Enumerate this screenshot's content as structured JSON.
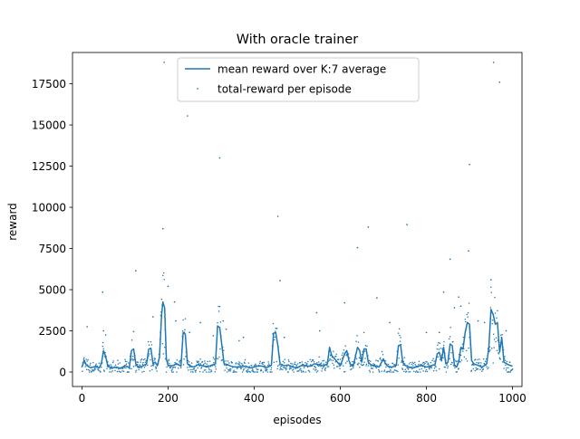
{
  "chart_data": {
    "type": "line",
    "title": "With oracle trainer",
    "xlabel": "episodes",
    "ylabel": "reward",
    "xlim": [
      -22,
      1022
    ],
    "ylim": [
      -880,
      19400
    ],
    "xticks": [
      0,
      200,
      400,
      600,
      800,
      1000
    ],
    "yticks": [
      0,
      2500,
      5000,
      7500,
      10000,
      12500,
      15000,
      17500
    ],
    "grid": false,
    "legend_position": "upper center",
    "series": [
      {
        "name": "mean reward over K:7 average",
        "style": "line",
        "color": "#1f77b4",
        "points": [
          [
            0,
            300
          ],
          [
            5,
            720
          ],
          [
            10,
            420
          ],
          [
            20,
            260
          ],
          [
            30,
            330
          ],
          [
            40,
            250
          ],
          [
            45,
            500
          ],
          [
            50,
            1300
          ],
          [
            55,
            950
          ],
          [
            60,
            350
          ],
          [
            70,
            250
          ],
          [
            80,
            300
          ],
          [
            90,
            220
          ],
          [
            100,
            400
          ],
          [
            110,
            260
          ],
          [
            115,
            1300
          ],
          [
            120,
            1400
          ],
          [
            125,
            500
          ],
          [
            130,
            280
          ],
          [
            140,
            350
          ],
          [
            150,
            500
          ],
          [
            155,
            1380
          ],
          [
            160,
            1450
          ],
          [
            165,
            500
          ],
          [
            170,
            600
          ],
          [
            175,
            380
          ],
          [
            180,
            900
          ],
          [
            185,
            3500
          ],
          [
            188,
            4250
          ],
          [
            192,
            3900
          ],
          [
            196,
            800
          ],
          [
            200,
            400
          ],
          [
            210,
            380
          ],
          [
            220,
            500
          ],
          [
            230,
            350
          ],
          [
            235,
            2400
          ],
          [
            240,
            2300
          ],
          [
            245,
            500
          ],
          [
            250,
            380
          ],
          [
            260,
            300
          ],
          [
            270,
            450
          ],
          [
            280,
            380
          ],
          [
            290,
            300
          ],
          [
            300,
            400
          ],
          [
            310,
            500
          ],
          [
            315,
            2800
          ],
          [
            320,
            2700
          ],
          [
            325,
            1600
          ],
          [
            330,
            500
          ],
          [
            340,
            420
          ],
          [
            350,
            320
          ],
          [
            360,
            300
          ],
          [
            370,
            300
          ],
          [
            380,
            360
          ],
          [
            390,
            250
          ],
          [
            400,
            300
          ],
          [
            410,
            380
          ],
          [
            420,
            350
          ],
          [
            430,
            280
          ],
          [
            440,
            400
          ],
          [
            445,
            2350
          ],
          [
            450,
            2400
          ],
          [
            455,
            1600
          ],
          [
            460,
            500
          ],
          [
            470,
            380
          ],
          [
            480,
            420
          ],
          [
            490,
            300
          ],
          [
            500,
            250
          ],
          [
            510,
            400
          ],
          [
            520,
            380
          ],
          [
            530,
            350
          ],
          [
            540,
            500
          ],
          [
            550,
            450
          ],
          [
            560,
            380
          ],
          [
            570,
            500
          ],
          [
            575,
            1500
          ],
          [
            580,
            1000
          ],
          [
            590,
            700
          ],
          [
            600,
            380
          ],
          [
            610,
            1100
          ],
          [
            615,
            1300
          ],
          [
            620,
            700
          ],
          [
            625,
            400
          ],
          [
            630,
            350
          ],
          [
            640,
            1500
          ],
          [
            645,
            1300
          ],
          [
            650,
            600
          ],
          [
            655,
            1400
          ],
          [
            660,
            1400
          ],
          [
            665,
            600
          ],
          [
            670,
            450
          ],
          [
            680,
            380
          ],
          [
            690,
            300
          ],
          [
            700,
            800
          ],
          [
            705,
            500
          ],
          [
            710,
            350
          ],
          [
            720,
            300
          ],
          [
            730,
            400
          ],
          [
            735,
            1600
          ],
          [
            740,
            1650
          ],
          [
            745,
            600
          ],
          [
            750,
            400
          ],
          [
            760,
            300
          ],
          [
            770,
            250
          ],
          [
            780,
            350
          ],
          [
            790,
            400
          ],
          [
            800,
            300
          ],
          [
            810,
            380
          ],
          [
            820,
            450
          ],
          [
            825,
            1100
          ],
          [
            830,
            1200
          ],
          [
            835,
            700
          ],
          [
            840,
            1500
          ],
          [
            845,
            500
          ],
          [
            850,
            600
          ],
          [
            855,
            1700
          ],
          [
            860,
            1600
          ],
          [
            865,
            400
          ],
          [
            870,
            300
          ],
          [
            875,
            600
          ],
          [
            880,
            1500
          ],
          [
            885,
            1400
          ],
          [
            890,
            2400
          ],
          [
            895,
            3000
          ],
          [
            900,
            2900
          ],
          [
            905,
            700
          ],
          [
            910,
            500
          ],
          [
            920,
            400
          ],
          [
            930,
            300
          ],
          [
            940,
            500
          ],
          [
            945,
            1500
          ],
          [
            950,
            3800
          ],
          [
            955,
            3500
          ],
          [
            960,
            2900
          ],
          [
            965,
            3000
          ],
          [
            970,
            1200
          ],
          [
            975,
            2100
          ],
          [
            980,
            600
          ],
          [
            990,
            450
          ],
          [
            1000,
            350
          ]
        ]
      },
      {
        "name": "total-reward per episode",
        "style": "scatter",
        "color": "#1f77b4",
        "outliers": [
          [
            12,
            2750
          ],
          [
            48,
            4850
          ],
          [
            50,
            2500
          ],
          [
            55,
            2250
          ],
          [
            125,
            6150
          ],
          [
            120,
            2450
          ],
          [
            165,
            3350
          ],
          [
            188,
            8700
          ],
          [
            191,
            18800
          ],
          [
            200,
            5200
          ],
          [
            215,
            4250
          ],
          [
            218,
            3100
          ],
          [
            245,
            15550
          ],
          [
            250,
            2400
          ],
          [
            275,
            3000
          ],
          [
            305,
            2200
          ],
          [
            320,
            13000
          ],
          [
            328,
            3100
          ],
          [
            335,
            2600
          ],
          [
            365,
            1900
          ],
          [
            375,
            2100
          ],
          [
            455,
            9450
          ],
          [
            460,
            5550
          ],
          [
            470,
            2100
          ],
          [
            545,
            3600
          ],
          [
            552,
            2500
          ],
          [
            610,
            4200
          ],
          [
            640,
            7550
          ],
          [
            665,
            8800
          ],
          [
            685,
            4500
          ],
          [
            715,
            3000
          ],
          [
            755,
            8950
          ],
          [
            800,
            2400
          ],
          [
            830,
            2400
          ],
          [
            840,
            4850
          ],
          [
            855,
            6850
          ],
          [
            865,
            3900
          ],
          [
            875,
            4550
          ],
          [
            880,
            4000
          ],
          [
            898,
            7350
          ],
          [
            900,
            12600
          ],
          [
            920,
            3100
          ],
          [
            935,
            3000
          ],
          [
            950,
            5600
          ],
          [
            956,
            18800
          ],
          [
            970,
            17600
          ],
          [
            985,
            2500
          ]
        ],
        "baseline_range": [
          0,
          1000
        ]
      }
    ]
  }
}
